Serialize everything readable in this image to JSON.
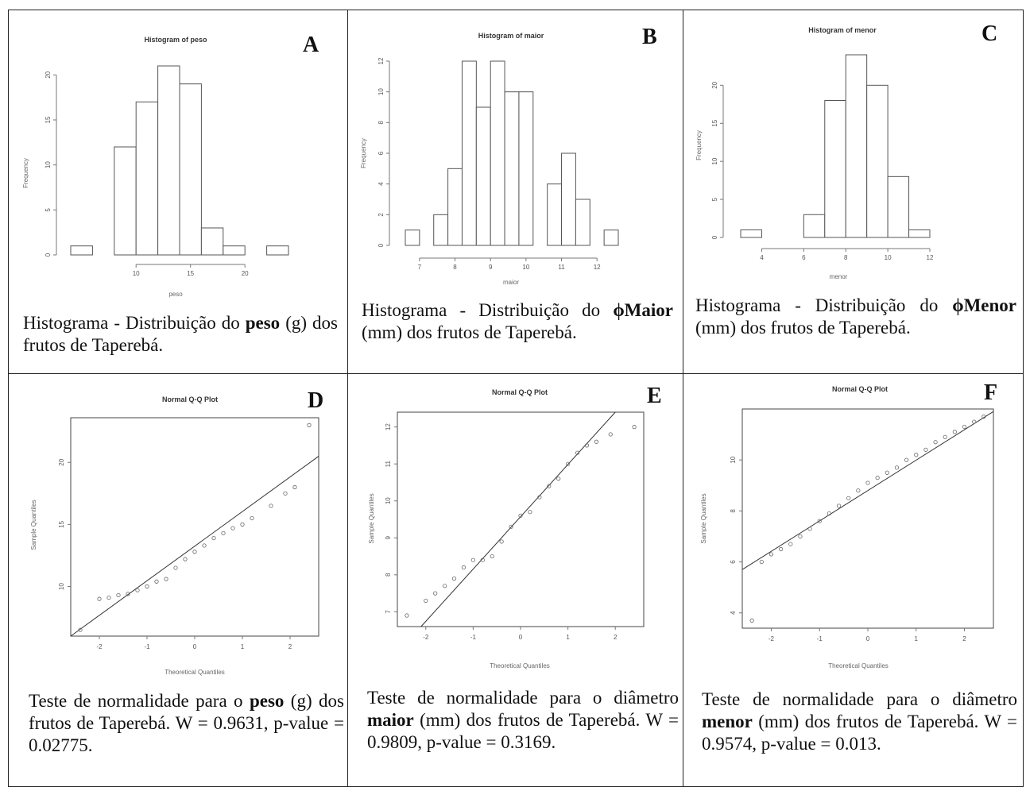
{
  "panels": [
    {
      "letter": "A",
      "caption": {
        "pre": "Histograma - Distribuição do ",
        "bold": "peso",
        "post": " (g) dos frutos de Taperebá."
      },
      "chart_data": {
        "type": "bar",
        "title": "Histogram of peso",
        "xlabel": "peso",
        "ylabel": "Frequency",
        "bin_edges": [
          4,
          6,
          8,
          10,
          12,
          14,
          16,
          18,
          20,
          22,
          24
        ],
        "values": [
          1,
          0,
          12,
          17,
          21,
          19,
          3,
          1,
          0,
          1
        ],
        "xticks": [
          10,
          15,
          20
        ],
        "yticks": [
          0,
          5,
          10,
          15,
          20
        ],
        "xlim": [
          4,
          24
        ],
        "ylim": [
          0,
          21
        ]
      }
    },
    {
      "letter": "B",
      "caption": {
        "pre": "Histograma - Distribuição do ",
        "bold": "ϕMaior",
        "post": " (mm) dos frutos de Taperebá."
      },
      "chart_data": {
        "type": "bar",
        "title": "Histogram of maior",
        "xlabel": "maior",
        "ylabel": "Frequency",
        "bin_edges": [
          6.6,
          7.0,
          7.4,
          7.8,
          8.2,
          8.6,
          9.0,
          9.4,
          9.8,
          10.2,
          10.6,
          11.0,
          11.4,
          11.8,
          12.2,
          12.6
        ],
        "values": [
          1,
          0,
          2,
          5,
          12,
          9,
          12,
          10,
          10,
          0,
          4,
          6,
          3,
          0,
          1
        ],
        "xticks": [
          7,
          8,
          9,
          10,
          11,
          12
        ],
        "yticks": [
          0,
          2,
          4,
          6,
          8,
          10,
          12
        ],
        "xlim": [
          6.6,
          12.6
        ],
        "ylim": [
          0,
          12
        ]
      }
    },
    {
      "letter": "C",
      "caption": {
        "pre": "Histograma - Distribuição do ",
        "bold": "ϕMenor",
        "post": " (mm) dos frutos de Taperebá."
      },
      "chart_data": {
        "type": "bar",
        "title": "Histogram of menor",
        "xlabel": "menor",
        "ylabel": "Frequency",
        "bin_edges": [
          3,
          4,
          5,
          6,
          7,
          8,
          9,
          10,
          11,
          12
        ],
        "values": [
          1,
          0,
          0,
          3,
          18,
          24,
          20,
          8,
          1
        ],
        "xticks": [
          4,
          6,
          8,
          10,
          12
        ],
        "yticks": [
          0,
          5,
          10,
          15,
          20
        ],
        "xlim": [
          3,
          12
        ],
        "ylim": [
          0,
          24
        ]
      }
    },
    {
      "letter": "D",
      "caption": {
        "pre": "Teste de normalidade para o ",
        "bold": "peso",
        "post": " (g) dos frutos de Taperebá. W = 0.9631, p-value = 0.02775."
      },
      "chart_data": {
        "type": "scatter",
        "title": "Normal Q-Q Plot",
        "xlabel": "Theoretical Quantiles",
        "ylabel": "Sample Quantiles",
        "xticks": [
          -2,
          -1,
          0,
          1,
          2
        ],
        "yticks": [
          10,
          15,
          20
        ],
        "xlim": [
          -2.6,
          2.6
        ],
        "ylim": [
          6.0,
          23.6
        ],
        "points": [
          [
            -2.4,
            6.5
          ],
          [
            -2.0,
            9.0
          ],
          [
            -1.8,
            9.1
          ],
          [
            -1.6,
            9.3
          ],
          [
            -1.4,
            9.4
          ],
          [
            -1.2,
            9.7
          ],
          [
            -1.0,
            10.0
          ],
          [
            -0.8,
            10.4
          ],
          [
            -0.6,
            10.6
          ],
          [
            -0.4,
            11.5
          ],
          [
            -0.2,
            12.2
          ],
          [
            0.0,
            12.8
          ],
          [
            0.2,
            13.3
          ],
          [
            0.4,
            13.9
          ],
          [
            0.6,
            14.3
          ],
          [
            0.8,
            14.7
          ],
          [
            1.0,
            15.0
          ],
          [
            1.2,
            15.5
          ],
          [
            1.6,
            16.5
          ],
          [
            1.9,
            17.5
          ],
          [
            2.1,
            18.0
          ],
          [
            2.4,
            23.0
          ]
        ],
        "ref_line": [
          [
            -2.6,
            6.0
          ],
          [
            2.6,
            20.5
          ]
        ]
      }
    },
    {
      "letter": "E",
      "caption": {
        "pre": "Teste de normalidade para o diâmetro ",
        "bold": "maior",
        "post": " (mm) dos frutos de Taperebá. W = 0.9809, p-value = 0.3169."
      },
      "chart_data": {
        "type": "scatter",
        "title": "Normal Q-Q Plot",
        "xlabel": "Theoretical Quantiles",
        "ylabel": "Sample Quantiles",
        "xticks": [
          -2,
          -1,
          0,
          1,
          2
        ],
        "yticks": [
          7,
          8,
          9,
          10,
          11,
          12
        ],
        "xlim": [
          -2.6,
          2.6
        ],
        "ylim": [
          6.6,
          12.4
        ],
        "points": [
          [
            -2.4,
            6.9
          ],
          [
            -2.0,
            7.3
          ],
          [
            -1.8,
            7.5
          ],
          [
            -1.6,
            7.7
          ],
          [
            -1.4,
            7.9
          ],
          [
            -1.2,
            8.2
          ],
          [
            -1.0,
            8.4
          ],
          [
            -0.8,
            8.4
          ],
          [
            -0.6,
            8.5
          ],
          [
            -0.4,
            8.9
          ],
          [
            -0.2,
            9.3
          ],
          [
            0.0,
            9.6
          ],
          [
            0.2,
            9.7
          ],
          [
            0.4,
            10.1
          ],
          [
            0.6,
            10.4
          ],
          [
            0.8,
            10.6
          ],
          [
            1.0,
            11.0
          ],
          [
            1.2,
            11.3
          ],
          [
            1.4,
            11.5
          ],
          [
            1.6,
            11.6
          ],
          [
            1.9,
            11.8
          ],
          [
            2.4,
            12.0
          ]
        ],
        "ref_line": [
          [
            -2.1,
            6.6
          ],
          [
            2.0,
            12.4
          ]
        ]
      }
    },
    {
      "letter": "F",
      "caption": {
        "pre": "Teste de normalidade para o diâmetro ",
        "bold": "menor",
        "post": " (mm) dos frutos de Taperebá. W = 0.9574, p-value = 0.013."
      },
      "chart_data": {
        "type": "scatter",
        "title": "Normal Q-Q Plot",
        "xlabel": "Theoretical Quantiles",
        "ylabel": "Sample Quantiles",
        "xticks": [
          -2,
          -1,
          0,
          1,
          2
        ],
        "yticks": [
          4,
          6,
          8,
          10
        ],
        "xlim": [
          -2.6,
          2.6
        ],
        "ylim": [
          3.4,
          12.0
        ],
        "points": [
          [
            -2.4,
            3.7
          ],
          [
            -2.2,
            6.0
          ],
          [
            -2.0,
            6.3
          ],
          [
            -1.8,
            6.5
          ],
          [
            -1.6,
            6.7
          ],
          [
            -1.4,
            7.0
          ],
          [
            -1.2,
            7.3
          ],
          [
            -1.0,
            7.6
          ],
          [
            -0.8,
            7.9
          ],
          [
            -0.6,
            8.2
          ],
          [
            -0.4,
            8.5
          ],
          [
            -0.2,
            8.8
          ],
          [
            0.0,
            9.1
          ],
          [
            0.2,
            9.3
          ],
          [
            0.4,
            9.5
          ],
          [
            0.6,
            9.7
          ],
          [
            0.8,
            10.0
          ],
          [
            1.0,
            10.2
          ],
          [
            1.2,
            10.4
          ],
          [
            1.4,
            10.7
          ],
          [
            1.6,
            10.9
          ],
          [
            1.8,
            11.1
          ],
          [
            2.0,
            11.3
          ],
          [
            2.2,
            11.5
          ],
          [
            2.4,
            11.7
          ]
        ],
        "ref_line": [
          [
            -2.6,
            5.7
          ],
          [
            2.6,
            11.9
          ]
        ]
      }
    }
  ]
}
